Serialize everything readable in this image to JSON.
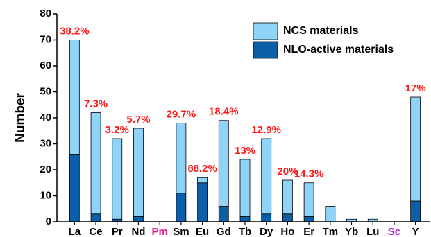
{
  "chart_data": {
    "type": "bar",
    "stacked": true,
    "y_label": "Number",
    "categories": [
      "La",
      "Ce",
      "Pr",
      "Nd",
      "Pm",
      "Sm",
      "Eu",
      "Gd",
      "Tb",
      "Dy",
      "Ho",
      "Er",
      "Tm",
      "Yb",
      "Lu",
      "Sc",
      "Y"
    ],
    "category_label_colors": [
      "#000000",
      "#000000",
      "#000000",
      "#000000",
      "#e6198c",
      "#000000",
      "#000000",
      "#000000",
      "#000000",
      "#000000",
      "#000000",
      "#000000",
      "#000000",
      "#000000",
      "#000000",
      "#c21ee0",
      "#000000"
    ],
    "series": [
      {
        "name": "NLO-active materials",
        "color": "#0b5ea8",
        "values": [
          26,
          3,
          1,
          2,
          0,
          11,
          15,
          6,
          2,
          3,
          3,
          2,
          0,
          0,
          0,
          0,
          8
        ]
      },
      {
        "name": "NCS materials",
        "color": "#8fd4f7",
        "values": [
          44,
          39,
          31,
          34,
          0,
          27,
          2,
          33,
          22,
          29,
          13,
          13,
          6,
          1,
          1,
          0,
          40
        ]
      }
    ],
    "percent_labels": [
      "38.2%",
      "7.3%",
      "3.2%",
      "5.7%",
      null,
      "29.7%",
      "88.2%",
      "18.4%",
      "13%",
      "12.9%",
      "20%",
      "14.3%",
      null,
      null,
      null,
      null,
      "17%"
    ],
    "percent_label_color": "#ff1a1a",
    "ylim": [
      0,
      80
    ],
    "yticks": [
      0,
      10,
      20,
      30,
      40,
      50,
      60,
      70,
      80
    ],
    "legend": "top-right"
  }
}
